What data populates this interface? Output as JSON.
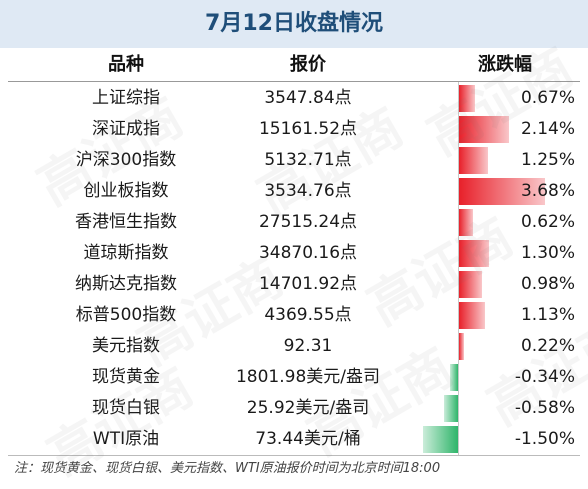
{
  "title": "7月12日收盘情况",
  "headers": {
    "name": "品种",
    "price": "报价",
    "change": "涨跌幅"
  },
  "colors": {
    "up": "#e8202a",
    "down": "#2fb56a",
    "title_bg": "#dfe9f4",
    "title_text": "#1f4e79"
  },
  "rows": [
    {
      "name": "上证综指",
      "price": "3547.84点",
      "change": "0.67%",
      "change_pct": 0.67
    },
    {
      "name": "深证成指",
      "price": "15161.52点",
      "change": "2.14%",
      "change_pct": 2.14
    },
    {
      "name": "沪深300指数",
      "price": "5132.71点",
      "change": "1.25%",
      "change_pct": 1.25
    },
    {
      "name": "创业板指数",
      "price": "3534.76点",
      "change": "3.68%",
      "change_pct": 3.68
    },
    {
      "name": "香港恒生指数",
      "price": "27515.24点",
      "change": "0.62%",
      "change_pct": 0.62
    },
    {
      "name": "道琼斯指数",
      "price": "34870.16点",
      "change": "1.30%",
      "change_pct": 1.3
    },
    {
      "name": "纳斯达克指数",
      "price": "14701.92点",
      "change": "0.98%",
      "change_pct": 0.98
    },
    {
      "name": "标普500指数",
      "price": "4369.55点",
      "change": "1.13%",
      "change_pct": 1.13
    },
    {
      "name": "美元指数",
      "price": "92.31",
      "change": "0.22%",
      "change_pct": 0.22
    },
    {
      "name": "现货黄金",
      "price": "1801.98美元/盎司",
      "change": "-0.34%",
      "change_pct": -0.34
    },
    {
      "name": "现货白银",
      "price": "25.92美元/盎司",
      "change": "-0.58%",
      "change_pct": -0.58
    },
    {
      "name": "WTI原油",
      "price": "73.44美元/桶",
      "change": "-1.50%",
      "change_pct": -1.5
    }
  ],
  "note": "注：现货黄金、现货白银、美元指数、WTI原油报价时间为北京时间18:00",
  "watermark": "高证商"
}
